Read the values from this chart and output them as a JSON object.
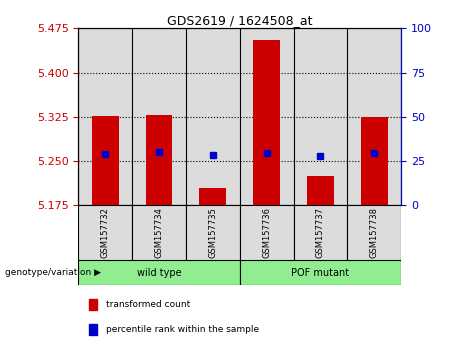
{
  "title": "GDS2619 / 1624508_at",
  "samples": [
    "GSM157732",
    "GSM157734",
    "GSM157735",
    "GSM157736",
    "GSM157737",
    "GSM157738"
  ],
  "red_values": [
    5.327,
    5.328,
    5.205,
    5.455,
    5.225,
    5.325
  ],
  "blue_values": [
    5.262,
    5.265,
    5.26,
    5.263,
    5.258,
    5.263
  ],
  "baseline": 5.175,
  "ylim_left": [
    5.175,
    5.475
  ],
  "yticks_left": [
    5.175,
    5.25,
    5.325,
    5.4,
    5.475
  ],
  "yticks_right": [
    0,
    25,
    50,
    75,
    100
  ],
  "ylim_right": [
    0,
    100
  ],
  "group_wt_label": "wild type",
  "group_pof_label": "POF mutant",
  "group_label": "genotype/variation",
  "bar_color": "#CC0000",
  "blue_color": "#0000CC",
  "left_axis_color": "#CC0000",
  "right_axis_color": "#0000CC",
  "bg_color": "#DCDCDC",
  "green_color": "#90EE90",
  "bar_width": 0.5,
  "legend_red": "transformed count",
  "legend_blue": "percentile rank within the sample"
}
